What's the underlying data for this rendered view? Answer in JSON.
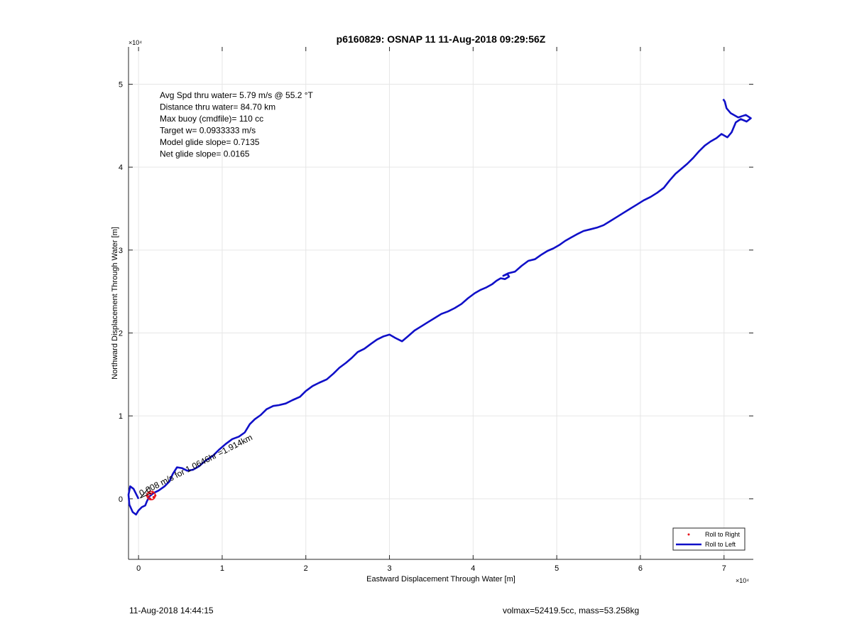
{
  "chart_data": {
    "type": "line",
    "title": "p6160829: OSNAP 11 11-Aug-2018 09:29:56Z",
    "xlabel": "Eastward Displacement Through Water [m]",
    "ylabel": "Northward Displacement Through Water [m]",
    "x_exponent_label": "×10⁴",
    "y_exponent_label": "×10⁴",
    "xlim": [
      -1200,
      73500
    ],
    "ylim": [
      -7300,
      54500
    ],
    "x_ticks": [
      0,
      10000,
      20000,
      30000,
      40000,
      50000,
      60000,
      70000
    ],
    "x_tick_labels": [
      "0",
      "1",
      "2",
      "3",
      "4",
      "5",
      "6",
      "7"
    ],
    "y_ticks": [
      0,
      10000,
      20000,
      30000,
      40000,
      50000
    ],
    "y_tick_labels": [
      "0",
      "1",
      "2",
      "3",
      "4",
      "5"
    ],
    "grid": true,
    "legend_position": "bottom-right",
    "annotations": [
      "Avg Spd thru water=  5.79 m/s @  55.2 °T",
      "Distance thru water= 84.70 km",
      "Max buoy (cmdfile)= 110 cc",
      "Target w= 0.0933333 m/s",
      "Model glide slope= 0.7135",
      "Net glide slope= 0.0165"
    ],
    "rotated_annotation": "0.008 m/s for 1.0646hr =1.914km",
    "series": [
      {
        "name": "Roll to Right",
        "style": "markers",
        "color": "#e8141b",
        "points": [
          [
            1200,
            300
          ],
          [
            1500,
            600
          ],
          [
            1800,
            200
          ],
          [
            1400,
            0
          ],
          [
            1000,
            400
          ],
          [
            1700,
            800
          ],
          [
            2000,
            400
          ],
          [
            1300,
            700
          ]
        ]
      },
      {
        "name": "Roll to Left",
        "style": "line",
        "color": "#1010c8",
        "points": [
          [
            0,
            0
          ],
          [
            -600,
            1200
          ],
          [
            -1000,
            1500
          ],
          [
            -1200,
            500
          ],
          [
            -1100,
            -700
          ],
          [
            -700,
            -1600
          ],
          [
            -300,
            -1900
          ],
          [
            0,
            -1400
          ],
          [
            400,
            -1000
          ],
          [
            800,
            -800
          ],
          [
            1000,
            -300
          ],
          [
            1300,
            300
          ],
          [
            1800,
            700
          ],
          [
            2400,
            1000
          ],
          [
            3100,
            1500
          ],
          [
            3700,
            2100
          ],
          [
            4100,
            3000
          ],
          [
            4600,
            3800
          ],
          [
            5200,
            3700
          ],
          [
            5800,
            3400
          ],
          [
            6500,
            3500
          ],
          [
            7200,
            3900
          ],
          [
            8000,
            4600
          ],
          [
            8900,
            5200
          ],
          [
            9600,
            5900
          ],
          [
            10400,
            6600
          ],
          [
            11200,
            7200
          ],
          [
            12000,
            7500
          ],
          [
            12700,
            8000
          ],
          [
            13300,
            9000
          ],
          [
            13900,
            9600
          ],
          [
            14600,
            10100
          ],
          [
            15300,
            10800
          ],
          [
            16100,
            11200
          ],
          [
            16800,
            11300
          ],
          [
            17600,
            11500
          ],
          [
            18400,
            11900
          ],
          [
            19300,
            12300
          ],
          [
            20000,
            13000
          ],
          [
            20800,
            13600
          ],
          [
            21600,
            14000
          ],
          [
            22500,
            14400
          ],
          [
            23300,
            15100
          ],
          [
            24000,
            15800
          ],
          [
            24800,
            16400
          ],
          [
            25500,
            17000
          ],
          [
            26200,
            17700
          ],
          [
            27000,
            18100
          ],
          [
            27800,
            18700
          ],
          [
            28500,
            19200
          ],
          [
            29300,
            19600
          ],
          [
            30000,
            19800
          ],
          [
            30700,
            19400
          ],
          [
            31500,
            19000
          ],
          [
            32200,
            19600
          ],
          [
            33000,
            20300
          ],
          [
            33800,
            20800
          ],
          [
            34600,
            21300
          ],
          [
            35400,
            21800
          ],
          [
            36200,
            22300
          ],
          [
            37000,
            22600
          ],
          [
            37800,
            23000
          ],
          [
            38600,
            23500
          ],
          [
            39400,
            24200
          ],
          [
            40200,
            24800
          ],
          [
            40900,
            25200
          ],
          [
            41600,
            25500
          ],
          [
            42300,
            25900
          ],
          [
            42800,
            26300
          ],
          [
            43300,
            26600
          ],
          [
            43800,
            26500
          ],
          [
            44300,
            26800
          ],
          [
            44100,
            27100
          ],
          [
            43600,
            26900
          ],
          [
            44200,
            27200
          ],
          [
            45000,
            27400
          ],
          [
            45800,
            28100
          ],
          [
            46600,
            28700
          ],
          [
            47400,
            28900
          ],
          [
            48100,
            29400
          ],
          [
            48900,
            29900
          ],
          [
            49600,
            30200
          ],
          [
            50300,
            30600
          ],
          [
            51000,
            31100
          ],
          [
            51700,
            31500
          ],
          [
            52400,
            31900
          ],
          [
            53200,
            32300
          ],
          [
            54000,
            32500
          ],
          [
            54800,
            32700
          ],
          [
            55600,
            33000
          ],
          [
            56400,
            33500
          ],
          [
            57200,
            34000
          ],
          [
            58000,
            34500
          ],
          [
            58800,
            35000
          ],
          [
            59600,
            35500
          ],
          [
            60400,
            36000
          ],
          [
            61200,
            36400
          ],
          [
            62000,
            36900
          ],
          [
            62800,
            37500
          ],
          [
            63500,
            38400
          ],
          [
            64200,
            39200
          ],
          [
            64900,
            39800
          ],
          [
            65600,
            40400
          ],
          [
            66300,
            41100
          ],
          [
            67000,
            41900
          ],
          [
            67700,
            42600
          ],
          [
            68400,
            43100
          ],
          [
            69100,
            43500
          ],
          [
            69700,
            44000
          ],
          [
            70400,
            43600
          ],
          [
            70900,
            44200
          ],
          [
            71400,
            45400
          ],
          [
            72000,
            45800
          ],
          [
            72700,
            45500
          ],
          [
            73200,
            45900
          ],
          [
            72600,
            46300
          ],
          [
            71700,
            46000
          ],
          [
            70800,
            46500
          ],
          [
            70300,
            47100
          ],
          [
            70100,
            47900
          ],
          [
            69900,
            48200
          ]
        ]
      }
    ]
  },
  "legend": {
    "items": [
      "Roll to Right",
      "Roll to Left"
    ]
  },
  "footer": {
    "left_text": "11-Aug-2018 14:44:15",
    "right_text": "volmax=52419.5cc, mass=53.258kg"
  }
}
